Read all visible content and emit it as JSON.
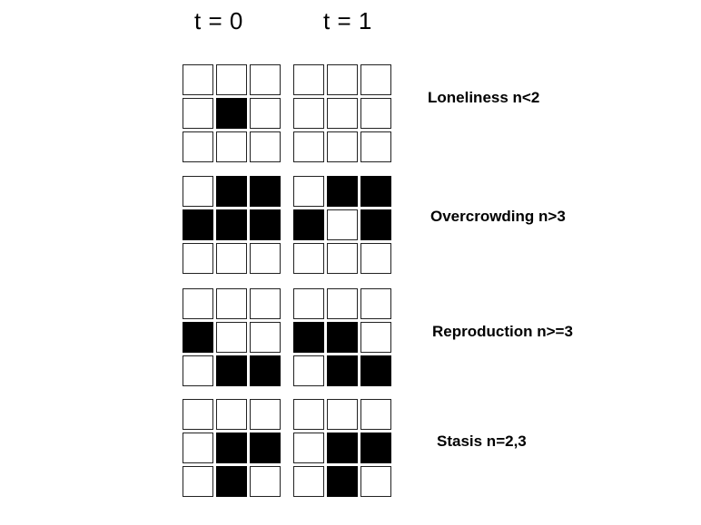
{
  "headers": {
    "t0": "t = 0",
    "t1": "t = 1"
  },
  "rules": [
    {
      "label": "Loneliness n<2",
      "t0": [
        [
          0,
          0,
          0
        ],
        [
          0,
          1,
          0
        ],
        [
          0,
          0,
          0
        ]
      ],
      "t1": [
        [
          0,
          0,
          0
        ],
        [
          0,
          0,
          0
        ],
        [
          0,
          0,
          0
        ]
      ]
    },
    {
      "label": "Overcrowding n>3",
      "t0": [
        [
          0,
          1,
          1
        ],
        [
          1,
          1,
          1
        ],
        [
          0,
          0,
          0
        ]
      ],
      "t1": [
        [
          0,
          1,
          1
        ],
        [
          1,
          0,
          1
        ],
        [
          0,
          0,
          0
        ]
      ]
    },
    {
      "label": "Reproduction n>=3",
      "t0": [
        [
          0,
          0,
          0
        ],
        [
          1,
          0,
          0
        ],
        [
          0,
          1,
          1
        ]
      ],
      "t1": [
        [
          0,
          0,
          0
        ],
        [
          1,
          1,
          0
        ],
        [
          0,
          1,
          1
        ]
      ]
    },
    {
      "label": "Stasis n=2,3",
      "t0": [
        [
          0,
          0,
          0
        ],
        [
          0,
          1,
          1
        ],
        [
          0,
          1,
          0
        ]
      ],
      "t1": [
        [
          0,
          0,
          0
        ],
        [
          0,
          1,
          1
        ],
        [
          0,
          1,
          0
        ]
      ]
    }
  ]
}
